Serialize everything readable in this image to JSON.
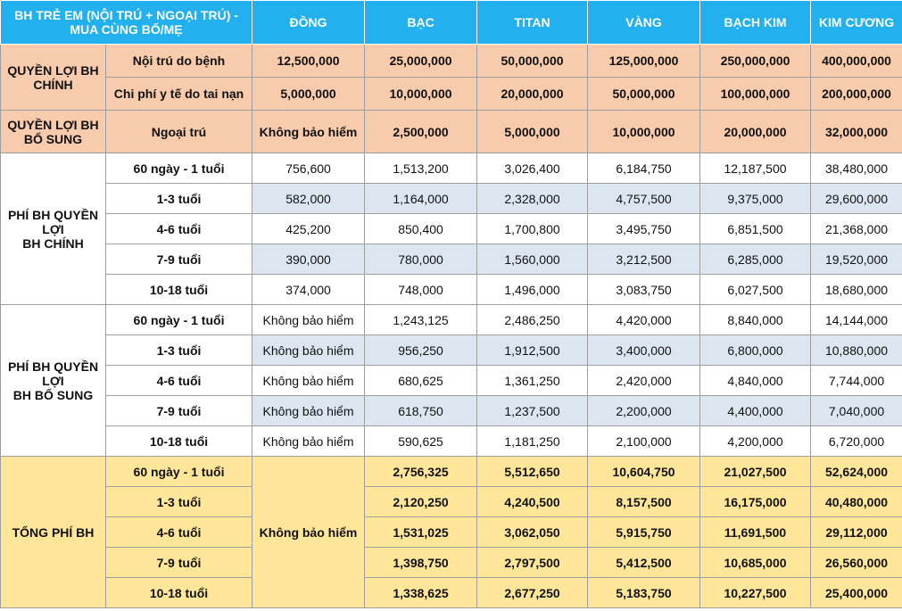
{
  "header": {
    "title": "BH TRẺ EM (NỘI TRÚ + NGOẠI TRÚ) -\nMUA CÙNG BỐ/MẸ",
    "plans": [
      "ĐỒNG",
      "BẠC",
      "TITAN",
      "VÀNG",
      "BẠCH KIM",
      "KIM CƯƠNG"
    ]
  },
  "sections": [
    {
      "group": "QUYỀN LỢI BH\nCHÍNH",
      "rows": [
        {
          "label": "Nội trú do bệnh",
          "values": [
            "12,500,000",
            "25,000,000",
            "50,000,000",
            "125,000,000",
            "250,000,000",
            "400,000,000"
          ]
        },
        {
          "label": "Chi phí y tế do tai nạn",
          "values": [
            "5,000,000",
            "10,000,000",
            "20,000,000",
            "50,000,000",
            "100,000,000",
            "200,000,000"
          ]
        }
      ]
    },
    {
      "group": "QUYỀN LỢI BH\nBỔ SUNG",
      "rows": [
        {
          "label": "Ngoại trú",
          "values": [
            "Không bảo hiểm",
            "2,500,000",
            "5,000,000",
            "10,000,000",
            "20,000,000",
            "32,000,000"
          ]
        }
      ]
    },
    {
      "group": "PHÍ BH QUYỀN\nLỢI\nBH CHÍNH",
      "rows": [
        {
          "label": "60 ngày - 1 tuổi",
          "values": [
            "756,600",
            "1,513,200",
            "3,026,400",
            "6,184,750",
            "12,187,500",
            "38,480,000"
          ]
        },
        {
          "label": "1-3 tuổi",
          "values": [
            "582,000",
            "1,164,000",
            "2,328,000",
            "4,757,500",
            "9,375,000",
            "29,600,000"
          ]
        },
        {
          "label": "4-6 tuổi",
          "values": [
            "425,200",
            "850,400",
            "1,700,800",
            "3,495,750",
            "6,851,500",
            "21,368,000"
          ]
        },
        {
          "label": "7-9 tuổi",
          "values": [
            "390,000",
            "780,000",
            "1,560,000",
            "3,212,500",
            "6,285,000",
            "19,520,000"
          ]
        },
        {
          "label": "10-18 tuổi",
          "values": [
            "374,000",
            "748,000",
            "1,496,000",
            "3,083,750",
            "6,027,500",
            "18,680,000"
          ]
        }
      ]
    },
    {
      "group": "PHÍ BH QUYỀN\nLỢI\nBH BỔ SUNG",
      "rows": [
        {
          "label": "60 ngày - 1 tuổi",
          "values": [
            "Không bảo hiểm",
            "1,243,125",
            "2,486,250",
            "4,420,000",
            "8,840,000",
            "14,144,000"
          ]
        },
        {
          "label": "1-3 tuổi",
          "values": [
            "Không bảo hiểm",
            "956,250",
            "1,912,500",
            "3,400,000",
            "6,800,000",
            "10,880,000"
          ]
        },
        {
          "label": "4-6 tuổi",
          "values": [
            "Không bảo hiểm",
            "680,625",
            "1,361,250",
            "2,420,000",
            "4,840,000",
            "7,744,000"
          ]
        },
        {
          "label": "7-9 tuổi",
          "values": [
            "Không bảo hiểm",
            "618,750",
            "1,237,500",
            "2,200,000",
            "4,400,000",
            "7,040,000"
          ]
        },
        {
          "label": "10-18 tuổi",
          "values": [
            "Không bảo hiểm",
            "590,625",
            "1,181,250",
            "2,100,000",
            "4,200,000",
            "6,720,000"
          ]
        }
      ]
    },
    {
      "group": "TỔNG PHÍ BH",
      "merged": "Không bảo hiểm",
      "rows": [
        {
          "label": "60 ngày - 1 tuổi",
          "values": [
            "2,756,325",
            "5,512,650",
            "10,604,750",
            "21,027,500",
            "52,624,000"
          ]
        },
        {
          "label": "1-3 tuổi",
          "values": [
            "2,120,250",
            "4,240,500",
            "8,157,500",
            "16,175,000",
            "40,480,000"
          ]
        },
        {
          "label": "4-6 tuổi",
          "values": [
            "1,531,025",
            "3,062,050",
            "5,915,750",
            "11,691,500",
            "29,112,000"
          ]
        },
        {
          "label": "7-9 tuổi",
          "values": [
            "1,398,750",
            "2,797,500",
            "5,412,500",
            "10,685,000",
            "26,560,000"
          ]
        },
        {
          "label": "10-18 tuổi",
          "values": [
            "1,338,625",
            "2,677,250",
            "5,183,750",
            "10,227,500",
            "25,400,000"
          ]
        }
      ]
    }
  ]
}
